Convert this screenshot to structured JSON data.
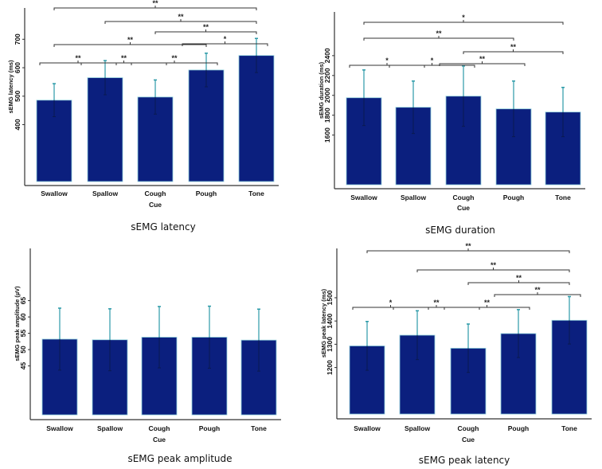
{
  "chart_data": [
    {
      "type": "bar",
      "title": "sEMG latency",
      "xlabel": "Cue",
      "ylabel": "sEMG latency (ms)",
      "categories": [
        "Swallow",
        "Spallow",
        "Cough",
        "Pough",
        "Tone"
      ],
      "values": [
        486,
        565,
        497,
        592,
        643
      ],
      "errors": [
        58,
        60,
        60,
        59,
        60
      ],
      "yticks": [
        400,
        500,
        600,
        700
      ],
      "ylim": [
        200,
        810
      ],
      "comparisons": [
        {
          "pair": [
            "Swallow",
            "Tone"
          ],
          "label": "**"
        },
        {
          "pair": [
            "Spallow",
            "Tone"
          ],
          "label": "**"
        },
        {
          "pair": [
            "Cough",
            "Tone"
          ],
          "label": "**"
        },
        {
          "pair": [
            "Swallow",
            "Pough"
          ],
          "label": "**"
        },
        {
          "pair": [
            "Pough",
            "Tone"
          ],
          "label": "*"
        },
        {
          "pair": [
            "Swallow",
            "Spallow"
          ],
          "label": "**"
        },
        {
          "pair": [
            "Spallow",
            "Cough"
          ],
          "label": "**"
        },
        {
          "pair": [
            "Cough",
            "Pough"
          ],
          "label": "**"
        }
      ]
    },
    {
      "type": "bar",
      "title": "sEMG duration",
      "xlabel": "Cue",
      "ylabel": "sEMG duration (ms)",
      "categories": [
        "Swallow",
        "Spallow",
        "Cough",
        "Pough",
        "Tone"
      ],
      "values": [
        1976,
        1880,
        1992,
        1864,
        1832
      ],
      "errors": [
        280,
        264,
        304,
        280,
        248
      ],
      "yticks": [
        1600,
        1800,
        2000,
        2200,
        2400
      ],
      "ylim": [
        1100,
        2840
      ],
      "comparisons": [
        {
          "pair": [
            "Swallow",
            "Tone"
          ],
          "label": "*"
        },
        {
          "pair": [
            "Swallow",
            "Pough"
          ],
          "label": "**"
        },
        {
          "pair": [
            "Cough",
            "Tone"
          ],
          "label": "**"
        },
        {
          "pair": [
            "Swallow",
            "Spallow"
          ],
          "label": "*"
        },
        {
          "pair": [
            "Spallow",
            "Cough"
          ],
          "label": "*"
        },
        {
          "pair": [
            "Cough",
            "Pough"
          ],
          "label": "**"
        }
      ]
    },
    {
      "type": "bar",
      "title": "sEMG peak amplitude",
      "xlabel": "Cue",
      "ylabel": "sEMG peak amplitude (µV)",
      "categories": [
        "Swallow",
        "Spallow",
        "Cough",
        "Pough",
        "Tone"
      ],
      "values": [
        53.2,
        53.0,
        53.8,
        53.8,
        52.9
      ],
      "errors": [
        9.5,
        9.5,
        9.4,
        9.5,
        9.5
      ],
      "yticks": [
        45,
        50,
        55,
        60,
        65
      ],
      "ylim": [
        30,
        81
      ],
      "comparisons": []
    },
    {
      "type": "bar",
      "title": "sEMG peak latency",
      "xlabel": "Cue",
      "ylabel": "sEMG peak latency (ms)",
      "categories": [
        "Swallow",
        "Spallow",
        "Cough",
        "Pough",
        "Tone"
      ],
      "values": [
        1293,
        1339,
        1283,
        1346,
        1403
      ],
      "errors": [
        105,
        105,
        104,
        103,
        102
      ],
      "yticks": [
        1200,
        1300,
        1400,
        1500
      ],
      "ylim": [
        1000,
        1712
      ],
      "comparisons": [
        {
          "pair": [
            "Swallow",
            "Tone"
          ],
          "label": "**"
        },
        {
          "pair": [
            "Spallow",
            "Tone"
          ],
          "label": "**"
        },
        {
          "pair": [
            "Cough",
            "Tone"
          ],
          "label": "**"
        },
        {
          "pair": [
            "Pough",
            "Tone"
          ],
          "label": "**"
        },
        {
          "pair": [
            "Swallow",
            "Spallow"
          ],
          "label": "*"
        },
        {
          "pair": [
            "Spallow",
            "Cough"
          ],
          "label": "**"
        },
        {
          "pair": [
            "Cough",
            "Pough"
          ],
          "label": "**"
        }
      ]
    }
  ],
  "colors": {
    "bar": "#0b1f7e",
    "bar_edge": "#8fd0dc",
    "error_upper": "#2b9aa8",
    "error_lower": "#0a1a50",
    "axis": "#333333"
  }
}
